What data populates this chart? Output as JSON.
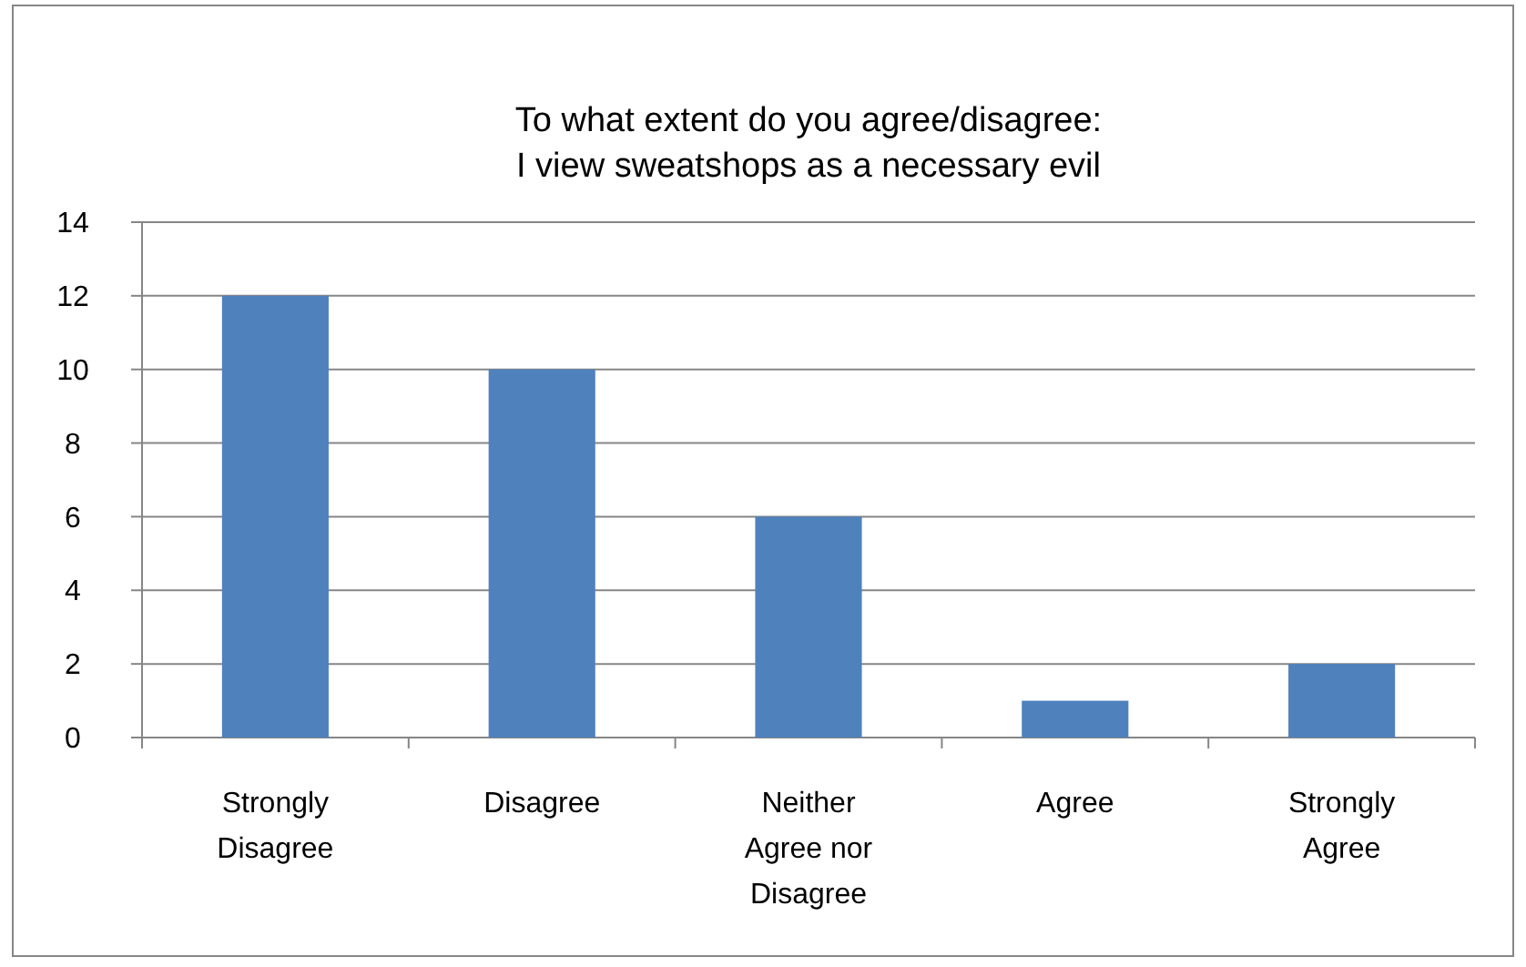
{
  "chart_data": {
    "type": "bar",
    "title": "To what extent do you agree/disagree:\nI view sweatshops as a necessary evil",
    "categories": [
      "Strongly Disagree",
      "Disagree",
      "Neither Agree nor Disagree",
      "Agree",
      "Strongly Agree"
    ],
    "values": [
      12,
      10,
      6,
      1,
      2
    ],
    "color": "#4f81bd",
    "ylim": [
      0,
      14
    ],
    "yticks": [
      0,
      2,
      4,
      6,
      8,
      10,
      12,
      14
    ],
    "grid": "y"
  }
}
